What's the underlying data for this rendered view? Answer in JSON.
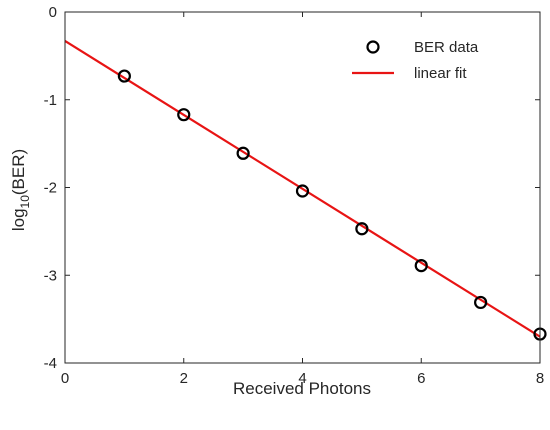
{
  "chart_data": {
    "type": "scatter",
    "xlabel": "Received Photons",
    "ylabel": {
      "prefix": "log",
      "subscript": "10",
      "suffix": "(BER)"
    },
    "xlim": [
      0,
      8
    ],
    "ylim": [
      -4,
      0
    ],
    "xticks": [
      0,
      2,
      4,
      6,
      8
    ],
    "yticks": [
      0,
      -1,
      -2,
      -3,
      -4
    ],
    "grid": false,
    "legend_position": "top-right",
    "series": [
      {
        "name": "BER data",
        "kind": "markers",
        "marker": "circle",
        "color": "#000000",
        "x": [
          1,
          2,
          3,
          4,
          5,
          6,
          7,
          8
        ],
        "y": [
          -0.73,
          -1.17,
          -1.61,
          -2.04,
          -2.47,
          -2.89,
          -3.31,
          -3.67
        ]
      },
      {
        "name": "linear fit",
        "kind": "line",
        "color": "#e81414",
        "x": [
          0,
          8
        ],
        "y": [
          -0.33,
          -3.7
        ]
      }
    ]
  }
}
